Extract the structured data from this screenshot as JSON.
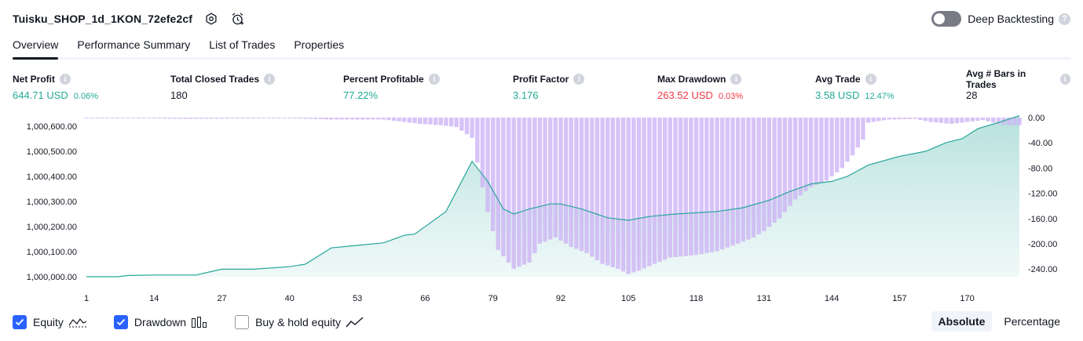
{
  "header": {
    "title": "Tuisku_SHOP_1d_1KON_72efe2cf"
  },
  "deep_backtesting": {
    "label": "Deep Backtesting",
    "enabled": false,
    "help": "?"
  },
  "tabs": [
    {
      "label": "Overview",
      "active": true
    },
    {
      "label": "Performance Summary",
      "active": false
    },
    {
      "label": "List of Trades",
      "active": false
    },
    {
      "label": "Properties",
      "active": false
    }
  ],
  "metrics": [
    {
      "label": "Net Profit",
      "value": "644.71 USD",
      "pct": "0.06%",
      "color": "#22ab94"
    },
    {
      "label": "Total Closed Trades",
      "value": "180",
      "pct": "",
      "color": "#131722"
    },
    {
      "label": "Percent Profitable",
      "value": "77.22%",
      "pct": "",
      "color": "#22ab94"
    },
    {
      "label": "Profit Factor",
      "value": "3.176",
      "pct": "",
      "color": "#22ab94"
    },
    {
      "label": "Max Drawdown",
      "value": "263.52 USD",
      "pct": "0.03%",
      "color": "#f23645"
    },
    {
      "label": "Avg Trade",
      "value": "3.58 USD",
      "pct": "12.47%",
      "color": "#22ab94"
    },
    {
      "label": "Avg # Bars in Trades",
      "value": "28",
      "pct": "",
      "color": "#131722"
    }
  ],
  "info_glyph": "i",
  "legend": [
    {
      "label": "Equity",
      "checked": true,
      "icon": "equity-line-icon"
    },
    {
      "label": "Drawdown",
      "checked": true,
      "icon": "drawdown-bars-icon"
    },
    {
      "label": "Buy & hold equity",
      "checked": false,
      "icon": "buy-hold-line-icon"
    }
  ],
  "modes": [
    {
      "label": "Absolute",
      "active": true
    },
    {
      "label": "Percentage",
      "active": false
    }
  ],
  "colors": {
    "equity_line": "#26a69a",
    "equity_fill": "#b2dfdb",
    "drawdown_bar": "#cdb4f5",
    "accent": "#2962ff"
  },
  "chart_data": {
    "type": "area",
    "x_ticks": [
      "1",
      "14",
      "27",
      "40",
      "53",
      "66",
      "79",
      "92",
      "105",
      "118",
      "131",
      "144",
      "157",
      "170"
    ],
    "xlim": [
      1,
      180
    ],
    "left_axis": {
      "ticks": [
        "1,000,000.00",
        "1,000,100.00",
        "1,000,200.00",
        "1,000,300.00",
        "1,000,400.00",
        "1,000,500.00",
        "1,000,600.00"
      ],
      "ylim": [
        1000000,
        1000640
      ]
    },
    "right_axis": {
      "ticks": [
        "0.00",
        "-40.00",
        "-80.00",
        "-120.00",
        "-160.00",
        "-200.00",
        "-240.00"
      ],
      "ylim": [
        0,
        -250
      ]
    },
    "series": [
      {
        "name": "Equity",
        "type": "area",
        "points": [
          [
            1,
            1000000
          ],
          [
            7,
            1000000
          ],
          [
            9,
            1000005
          ],
          [
            14,
            1000007
          ],
          [
            22,
            1000007
          ],
          [
            27,
            1000030
          ],
          [
            33,
            1000030
          ],
          [
            40,
            1000040
          ],
          [
            43,
            1000050
          ],
          [
            48,
            1000115
          ],
          [
            53,
            1000125
          ],
          [
            58,
            1000135
          ],
          [
            62,
            1000165
          ],
          [
            64,
            1000170
          ],
          [
            70,
            1000260
          ],
          [
            75,
            1000460
          ],
          [
            78,
            1000380
          ],
          [
            81,
            1000270
          ],
          [
            83,
            1000250
          ],
          [
            86,
            1000270
          ],
          [
            90,
            1000290
          ],
          [
            92,
            1000290
          ],
          [
            96,
            1000270
          ],
          [
            101,
            1000235
          ],
          [
            105,
            1000225
          ],
          [
            109,
            1000240
          ],
          [
            114,
            1000250
          ],
          [
            122,
            1000260
          ],
          [
            127,
            1000275
          ],
          [
            132,
            1000305
          ],
          [
            136,
            1000340
          ],
          [
            140,
            1000370
          ],
          [
            144,
            1000380
          ],
          [
            147,
            1000400
          ],
          [
            151,
            1000445
          ],
          [
            157,
            1000480
          ],
          [
            162,
            1000500
          ],
          [
            166,
            1000535
          ],
          [
            169,
            1000550
          ],
          [
            172,
            1000590
          ],
          [
            176,
            1000615
          ],
          [
            180,
            1000642
          ]
        ]
      },
      {
        "name": "Drawdown",
        "type": "bar",
        "points": [
          [
            1,
            0
          ],
          [
            20,
            -2
          ],
          [
            40,
            -1
          ],
          [
            48,
            -3
          ],
          [
            58,
            -3
          ],
          [
            65,
            -10
          ],
          [
            69,
            -12
          ],
          [
            72,
            -15
          ],
          [
            75,
            -32
          ],
          [
            78,
            -150
          ],
          [
            80,
            -210
          ],
          [
            83,
            -240
          ],
          [
            86,
            -230
          ],
          [
            88,
            -200
          ],
          [
            91,
            -190
          ],
          [
            94,
            -205
          ],
          [
            97,
            -215
          ],
          [
            100,
            -232
          ],
          [
            103,
            -240
          ],
          [
            105,
            -248
          ],
          [
            107,
            -243
          ],
          [
            110,
            -232
          ],
          [
            113,
            -222
          ],
          [
            118,
            -218
          ],
          [
            122,
            -212
          ],
          [
            126,
            -200
          ],
          [
            129,
            -190
          ],
          [
            131,
            -180
          ],
          [
            134,
            -160
          ],
          [
            137,
            -130
          ],
          [
            140,
            -110
          ],
          [
            143,
            -100
          ],
          [
            146,
            -80
          ],
          [
            148,
            -60
          ],
          [
            150,
            -35
          ],
          [
            151,
            -8
          ],
          [
            155,
            -3
          ],
          [
            160,
            -2
          ],
          [
            163,
            -7
          ],
          [
            167,
            -10
          ],
          [
            170,
            -7
          ],
          [
            173,
            -4
          ],
          [
            176,
            -10
          ],
          [
            178,
            -12
          ],
          [
            180,
            -12
          ]
        ]
      }
    ]
  }
}
